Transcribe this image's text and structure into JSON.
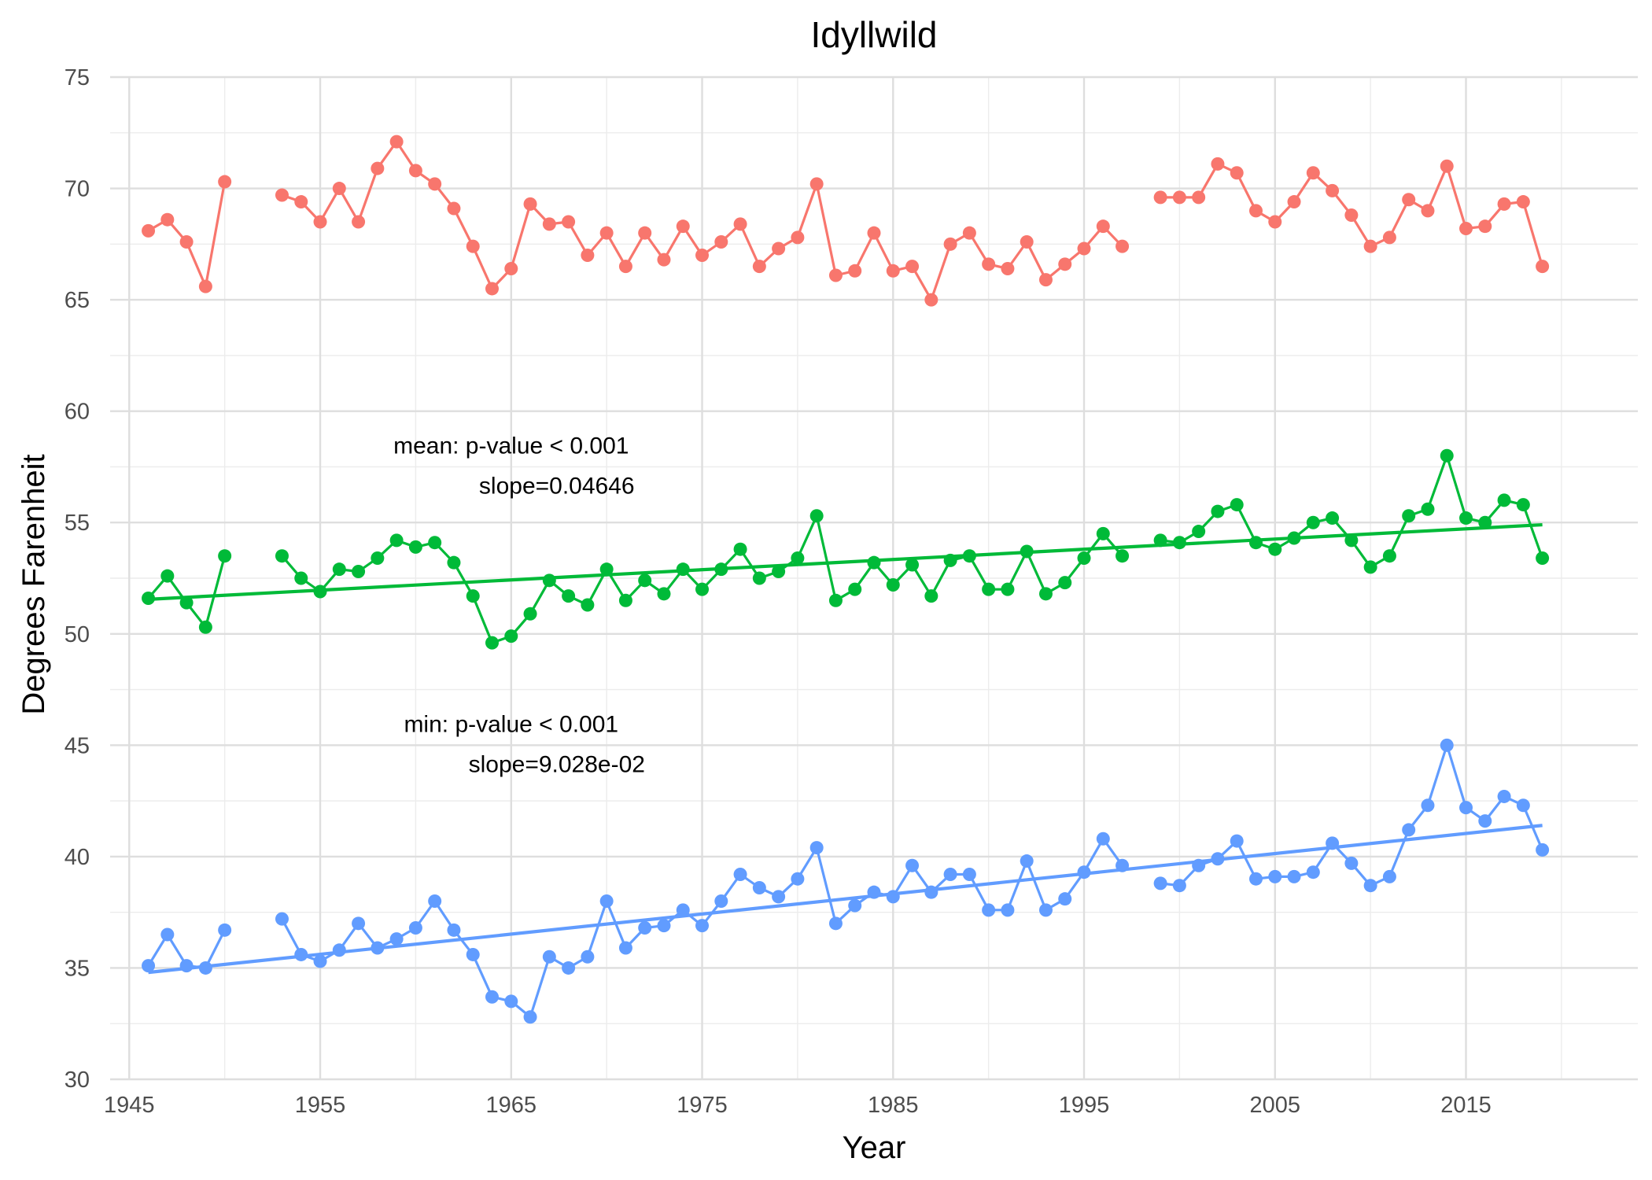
{
  "chart_data": {
    "type": "line",
    "title": "Idyllwild",
    "xlabel": "Year",
    "ylabel": "Degrees Farenheit",
    "xlim": [
      1944,
      2024
    ],
    "ylim": [
      30,
      75
    ],
    "x_ticks": [
      1945,
      1955,
      1965,
      1975,
      1985,
      1995,
      2005,
      2015
    ],
    "y_ticks": [
      30,
      35,
      40,
      45,
      50,
      55,
      60,
      65,
      70,
      75
    ],
    "grid": true,
    "legend": "none",
    "colors": {
      "max": "#F8766D",
      "mean": "#00BA38",
      "min": "#619CFF"
    },
    "series": [
      {
        "key": "max",
        "x": [
          1946,
          1947,
          1948,
          1949,
          1950,
          1953,
          1954,
          1955,
          1956,
          1957,
          1958,
          1959,
          1960,
          1961,
          1962,
          1963,
          1964,
          1965,
          1966,
          1967,
          1968,
          1969,
          1970,
          1971,
          1972,
          1973,
          1974,
          1975,
          1976,
          1977,
          1978,
          1979,
          1980,
          1981,
          1982,
          1983,
          1984,
          1985,
          1986,
          1987,
          1988,
          1989,
          1990,
          1991,
          1992,
          1993,
          1994,
          1995,
          1996,
          1997,
          1999,
          2000,
          2001,
          2002,
          2003,
          2004,
          2005,
          2006,
          2007,
          2008,
          2009,
          2010,
          2011,
          2012,
          2013,
          2014,
          2015,
          2016,
          2017,
          2018,
          2019
        ],
        "values": [
          68.1,
          68.6,
          67.6,
          65.6,
          70.3,
          69.7,
          69.4,
          68.5,
          70.0,
          68.5,
          70.9,
          72.1,
          70.8,
          70.2,
          69.1,
          67.4,
          65.5,
          66.4,
          69.3,
          68.4,
          68.5,
          67.0,
          68.0,
          66.5,
          68.0,
          66.8,
          68.3,
          67.0,
          67.6,
          68.4,
          66.5,
          67.3,
          67.8,
          70.2,
          66.1,
          66.3,
          68.0,
          66.3,
          66.5,
          65.0,
          67.5,
          68.0,
          66.6,
          66.4,
          67.6,
          65.9,
          66.6,
          67.3,
          68.3,
          67.4,
          69.6,
          69.6,
          69.6,
          71.1,
          70.7,
          69.0,
          68.5,
          69.4,
          70.7,
          69.9,
          68.8,
          67.4,
          67.8,
          69.5,
          69.0,
          71.0,
          68.2,
          68.3,
          69.3,
          69.4,
          66.5
        ]
      },
      {
        "key": "mean",
        "x": [
          1946,
          1947,
          1948,
          1949,
          1950,
          1953,
          1954,
          1955,
          1956,
          1957,
          1958,
          1959,
          1960,
          1961,
          1962,
          1963,
          1964,
          1965,
          1966,
          1967,
          1968,
          1969,
          1970,
          1971,
          1972,
          1973,
          1974,
          1975,
          1976,
          1977,
          1978,
          1979,
          1980,
          1981,
          1982,
          1983,
          1984,
          1985,
          1986,
          1987,
          1988,
          1989,
          1990,
          1991,
          1992,
          1993,
          1994,
          1995,
          1996,
          1997,
          1999,
          2000,
          2001,
          2002,
          2003,
          2004,
          2005,
          2006,
          2007,
          2008,
          2009,
          2010,
          2011,
          2012,
          2013,
          2014,
          2015,
          2016,
          2017,
          2018,
          2019
        ],
        "values": [
          51.6,
          52.6,
          51.4,
          50.3,
          53.5,
          53.5,
          52.5,
          51.9,
          52.9,
          52.8,
          53.4,
          54.2,
          53.9,
          54.1,
          53.2,
          51.7,
          49.6,
          49.9,
          50.9,
          52.4,
          51.7,
          51.3,
          52.9,
          51.5,
          52.4,
          51.8,
          52.9,
          52.0,
          52.9,
          53.8,
          52.5,
          52.8,
          53.4,
          55.3,
          51.5,
          52.0,
          53.2,
          52.2,
          53.1,
          51.7,
          53.3,
          53.5,
          52.0,
          52.0,
          53.7,
          51.8,
          52.3,
          53.4,
          54.5,
          53.5,
          54.2,
          54.1,
          54.6,
          55.5,
          55.8,
          54.1,
          53.8,
          54.3,
          55.0,
          55.2,
          54.2,
          53.0,
          53.5,
          55.3,
          55.6,
          58.0,
          55.2,
          55.0,
          56.0,
          55.8,
          53.4
        ]
      },
      {
        "key": "min",
        "x": [
          1946,
          1947,
          1948,
          1949,
          1950,
          1953,
          1954,
          1955,
          1956,
          1957,
          1958,
          1959,
          1960,
          1961,
          1962,
          1963,
          1964,
          1965,
          1966,
          1967,
          1968,
          1969,
          1970,
          1971,
          1972,
          1973,
          1974,
          1975,
          1976,
          1977,
          1978,
          1979,
          1980,
          1981,
          1982,
          1983,
          1984,
          1985,
          1986,
          1987,
          1988,
          1989,
          1990,
          1991,
          1992,
          1993,
          1994,
          1995,
          1996,
          1997,
          1999,
          2000,
          2001,
          2002,
          2003,
          2004,
          2005,
          2006,
          2007,
          2008,
          2009,
          2010,
          2011,
          2012,
          2013,
          2014,
          2015,
          2016,
          2017,
          2018,
          2019
        ],
        "values": [
          35.1,
          36.5,
          35.1,
          35.0,
          36.7,
          37.2,
          35.6,
          35.3,
          35.8,
          37.0,
          35.9,
          36.3,
          36.8,
          38.0,
          36.7,
          35.6,
          33.7,
          33.5,
          32.8,
          35.5,
          35.0,
          35.5,
          38.0,
          35.9,
          36.8,
          36.9,
          37.6,
          36.9,
          38.0,
          39.2,
          38.6,
          38.2,
          39.0,
          40.4,
          37.0,
          37.8,
          38.4,
          38.2,
          39.6,
          38.4,
          39.2,
          39.2,
          37.6,
          37.6,
          39.8,
          37.6,
          38.1,
          39.3,
          40.8,
          39.6,
          38.8,
          38.7,
          39.6,
          39.9,
          40.7,
          39.0,
          39.1,
          39.1,
          39.3,
          40.6,
          39.7,
          38.7,
          39.1,
          41.2,
          42.3,
          45.0,
          42.2,
          41.6,
          42.7,
          42.3,
          40.3
        ]
      }
    ],
    "trend_lines": [
      {
        "key": "mean",
        "x": [
          1946,
          2019
        ],
        "values": [
          51.55,
          54.9
        ]
      },
      {
        "key": "min",
        "x": [
          1946,
          2019
        ],
        "values": [
          34.8,
          41.4
        ]
      }
    ],
    "annotations": [
      {
        "line1": "mean: p-value < 0.001",
        "line2": "slope=0.04646",
        "x": 1965,
        "y1": 58.1,
        "y2": 56.3
      },
      {
        "line1": "min: p-value < 0.001",
        "line2": "slope=9.028e-02",
        "x": 1965,
        "y1": 45.6,
        "y2": 43.8
      }
    ]
  }
}
